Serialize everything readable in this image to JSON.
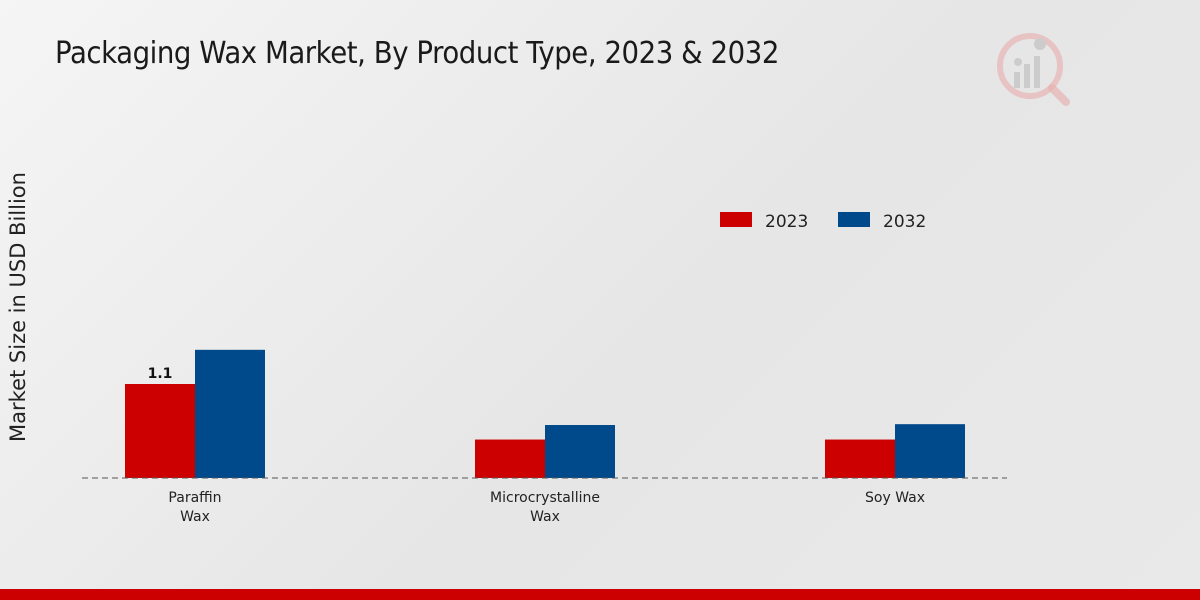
{
  "chart_data": {
    "type": "bar",
    "title": "Packaging Wax Market, By Product Type, 2023 & 2032",
    "xlabel": "",
    "ylabel": "Market Size in USD Billion",
    "categories": [
      "Paraffin\nWax",
      "Microcrystalline\nWax",
      "Soy Wax"
    ],
    "series": [
      {
        "name": "2023",
        "color": "#cc0000",
        "values": [
          1.1,
          0.45,
          0.45
        ]
      },
      {
        "name": "2032",
        "color": "#004a8b",
        "values": [
          1.5,
          0.62,
          0.63
        ]
      }
    ],
    "data_labels": [
      {
        "series": 0,
        "category": 0,
        "text": "1.1"
      }
    ],
    "ylim": [
      0,
      4.0
    ],
    "grid": false,
    "legend_position": "top-right"
  },
  "colors": {
    "accent": "#cc0000",
    "secondary": "#004a8b"
  }
}
